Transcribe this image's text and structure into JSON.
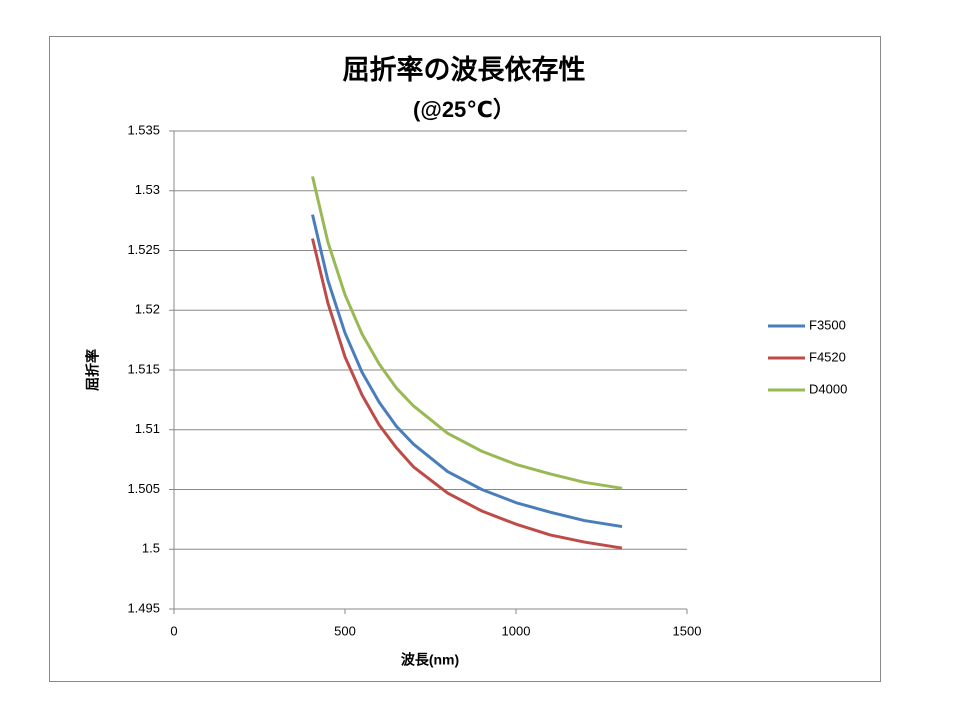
{
  "chart_data": {
    "type": "line",
    "title": "屈折率の波長依存性",
    "subtitle": "(@25℃）",
    "x_label": "波長(nm)",
    "y_label": "屈折率",
    "x": [
      405,
      450,
      500,
      550,
      600,
      650,
      700,
      800,
      900,
      1000,
      1100,
      1200,
      1310
    ],
    "series": [
      {
        "name": "F3500",
        "color": "#4a7ebb",
        "values": [
          1.528,
          1.5225,
          1.5181,
          1.5148,
          1.5123,
          1.5103,
          1.5088,
          1.5065,
          1.505,
          1.5039,
          1.5031,
          1.5024,
          1.5019
        ]
      },
      {
        "name": "F4520",
        "color": "#be4b48",
        "values": [
          1.526,
          1.5206,
          1.5161,
          1.5129,
          1.5104,
          1.5085,
          1.5069,
          1.5047,
          1.5032,
          1.5021,
          1.5012,
          1.5006,
          1.5001
        ]
      },
      {
        "name": "D4000",
        "color": "#98b954",
        "values": [
          1.5312,
          1.5257,
          1.5213,
          1.518,
          1.5155,
          1.5135,
          1.512,
          1.5097,
          1.5082,
          1.5071,
          1.5063,
          1.5056,
          1.5051
        ]
      }
    ],
    "xlim": [
      0,
      1500
    ],
    "xticks": [
      0,
      500,
      1000,
      1500
    ],
    "ylim": [
      1.495,
      1.535
    ],
    "yticks": [
      1.495,
      1.5,
      1.505,
      1.51,
      1.515,
      1.52,
      1.525,
      1.53,
      1.535
    ],
    "grid": true,
    "legend": "right"
  }
}
